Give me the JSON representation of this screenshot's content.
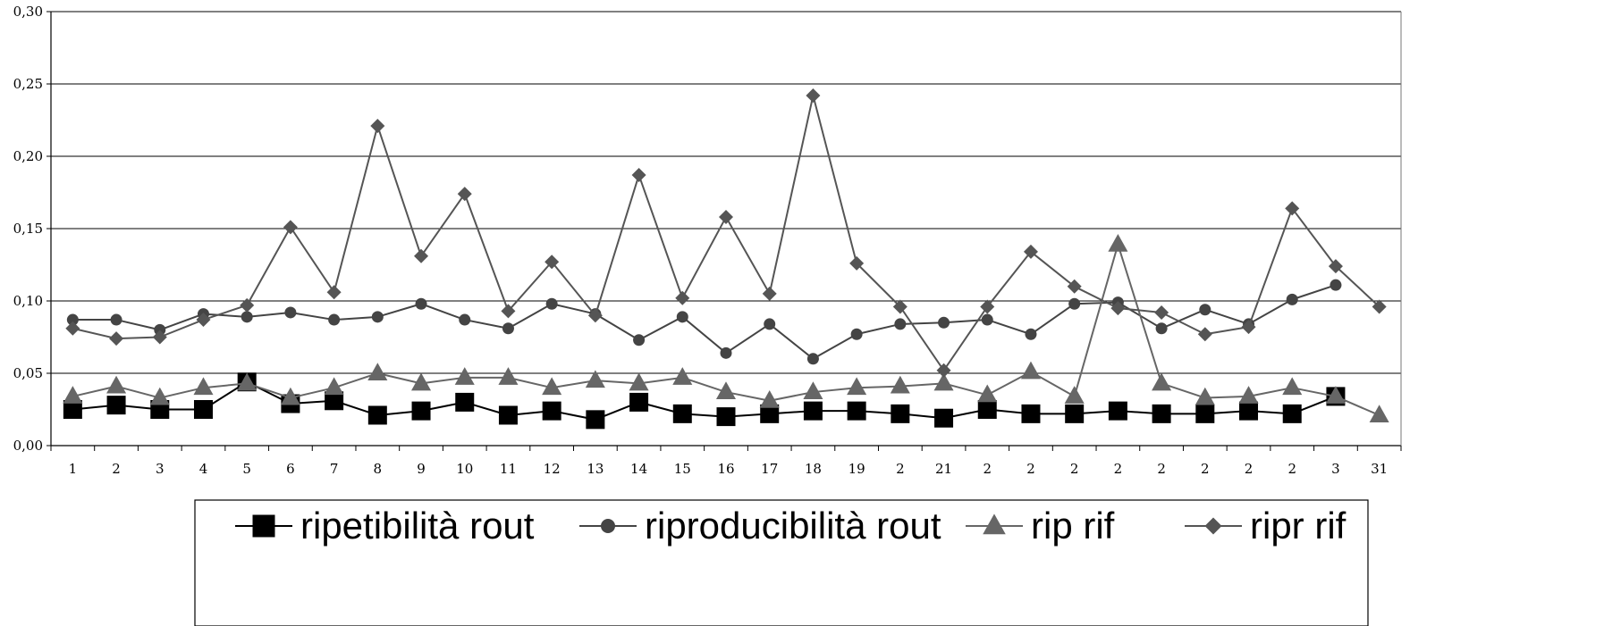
{
  "chart_data": {
    "type": "line",
    "title": "",
    "xlabel": "",
    "ylabel": "",
    "ylim": [
      0,
      0.3
    ],
    "y_ticks": [
      "0,00",
      "0,05",
      "0,10",
      "0,15",
      "0,20",
      "0,25",
      "0,30"
    ],
    "categories": [
      "1",
      "2",
      "3",
      "4",
      "5",
      "6",
      "7",
      "8",
      "9",
      "10",
      "11",
      "12",
      "13",
      "14",
      "15",
      "16",
      "17",
      "18",
      "19",
      "2",
      "21",
      "2",
      "2",
      "2",
      "2",
      "2",
      "2",
      "2",
      "2",
      "3",
      "31"
    ],
    "grid": "horizontal",
    "legend_position": "bottom",
    "series": [
      {
        "name": "ripetibilità rout",
        "color": "#000000",
        "marker": "square",
        "values": [
          0.025,
          0.028,
          0.025,
          0.025,
          0.044,
          0.029,
          0.031,
          0.021,
          0.024,
          0.03,
          0.021,
          0.024,
          0.018,
          0.03,
          0.022,
          0.02,
          0.022,
          0.024,
          0.024,
          0.022,
          0.019,
          0.025,
          0.022,
          0.022,
          0.024,
          0.022,
          0.022,
          0.024,
          0.022,
          0.034,
          null
        ]
      },
      {
        "name": "riproducibilità rout",
        "color": "#444444",
        "marker": "circle",
        "values": [
          0.087,
          0.087,
          0.08,
          0.091,
          0.089,
          0.092,
          0.087,
          0.089,
          0.098,
          0.087,
          0.081,
          0.098,
          0.091,
          0.073,
          0.089,
          0.064,
          0.084,
          0.06,
          0.077,
          0.084,
          0.085,
          0.087,
          0.077,
          0.098,
          0.099,
          0.081,
          0.094,
          0.084,
          0.101,
          0.111,
          null
        ]
      },
      {
        "name": "rip rif",
        "color": "#666666",
        "marker": "triangle",
        "values": [
          0.034,
          0.041,
          0.033,
          0.04,
          0.043,
          0.033,
          0.04,
          0.05,
          0.043,
          0.047,
          0.047,
          0.04,
          0.045,
          0.043,
          0.047,
          0.037,
          0.031,
          0.037,
          0.04,
          0.041,
          0.043,
          0.035,
          0.051,
          0.034,
          0.139,
          0.043,
          0.033,
          0.034,
          0.04,
          0.034,
          0.021
        ]
      },
      {
        "name": "ripr rif",
        "color": "#555555",
        "marker": "diamond",
        "values": [
          0.081,
          0.074,
          0.075,
          0.087,
          0.097,
          0.151,
          0.106,
          0.221,
          0.131,
          0.174,
          0.093,
          0.127,
          0.09,
          0.187,
          0.102,
          0.158,
          0.105,
          0.242,
          0.126,
          0.096,
          0.052,
          0.096,
          0.134,
          0.11,
          0.095,
          0.092,
          0.077,
          0.082,
          0.164,
          0.124,
          0.096
        ]
      }
    ]
  }
}
